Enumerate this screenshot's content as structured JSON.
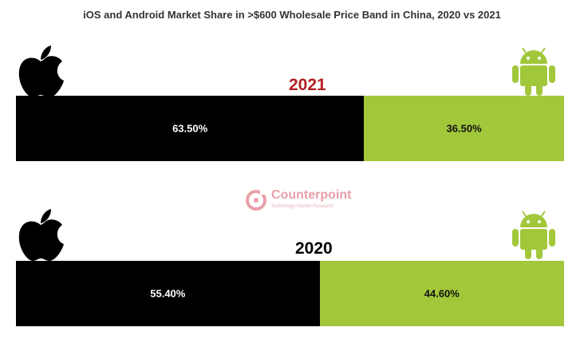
{
  "title": "iOS and Android Market Share in >$600 Wholesale Price Band in China, 2020 vs 2021",
  "colors": {
    "ios": "#000000",
    "android": "#a2c73b",
    "year_2021": "#b21f24",
    "year_2020": "#000000",
    "watermark": "#e8a0a8"
  },
  "icons": {
    "ios": "apple-logo-icon",
    "android": "android-robot-icon"
  },
  "watermark": {
    "name": "Counterpoint",
    "tagline": "Technology Market Research"
  },
  "chart_data": {
    "type": "bar",
    "orientation": "horizontal-stacked-100",
    "title": "iOS and Android Market Share in >$600 Wholesale Price Band in China, 2020 vs 2021",
    "categories": [
      "2021",
      "2020"
    ],
    "series": [
      {
        "values": [
          63.5,
          55.4
        ],
        "labels": [
          "63.50%",
          "55.40%"
        ]
      },
      {
        "values": [
          36.5,
          44.6
        ],
        "labels": [
          "36.50%",
          "44.60%"
        ]
      }
    ],
    "xlim": [
      0,
      100
    ],
    "grid": false
  }
}
